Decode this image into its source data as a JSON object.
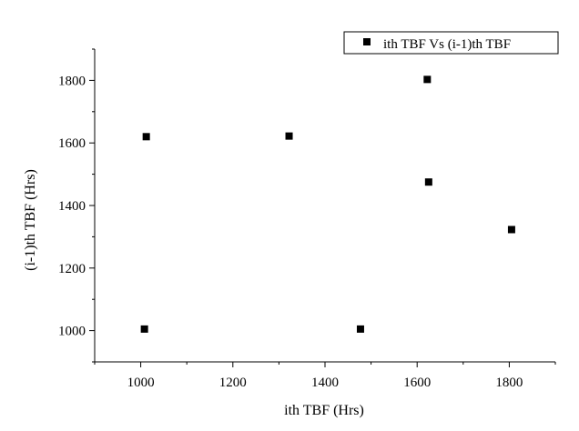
{
  "chart_data": {
    "type": "scatter",
    "title": "",
    "xlabel": "ith TBF (Hrs)",
    "ylabel": "(i-1)th TBF (Hrs)",
    "xlim": [
      900,
      1900
    ],
    "ylim": [
      900,
      1900
    ],
    "xticks": [
      1000,
      1200,
      1400,
      1600,
      1800
    ],
    "yticks": [
      1000,
      1200,
      1400,
      1600,
      1800
    ],
    "grid": false,
    "legend_position": "top-right",
    "marker_color": "#000000",
    "series": [
      {
        "name": "ith TBF Vs (i-1)th TBF",
        "marker": "square",
        "points": [
          {
            "x": 1012,
            "y": 1620
          },
          {
            "x": 1322,
            "y": 1622
          },
          {
            "x": 1622,
            "y": 1803
          },
          {
            "x": 1625,
            "y": 1475
          },
          {
            "x": 1805,
            "y": 1323
          },
          {
            "x": 1008,
            "y": 1005
          },
          {
            "x": 1477,
            "y": 1005
          }
        ]
      }
    ]
  }
}
